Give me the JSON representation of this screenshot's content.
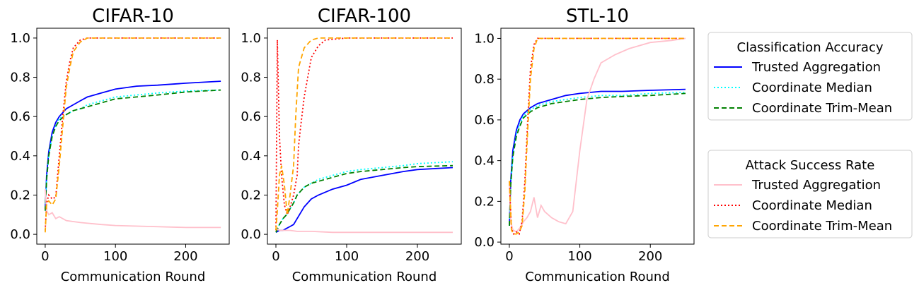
{
  "chart_data": [
    {
      "type": "line",
      "title": "CIFAR-10",
      "xlabel": "Communication Round",
      "ylabel": "",
      "xlim": [
        -12,
        262
      ],
      "ylim": [
        -0.05,
        1.05
      ],
      "xticks": [
        0,
        100,
        200
      ],
      "xtick_labels": [
        "0",
        "100",
        "200"
      ],
      "yticks": [
        0.0,
        0.2,
        0.4,
        0.6,
        0.8,
        1.0
      ],
      "ytick_labels": [
        "0.0",
        "0.2",
        "0.4",
        "0.6",
        "0.8",
        "1.0"
      ],
      "series": [
        {
          "name": "Trusted Aggregation",
          "metric": "Classification Accuracy",
          "color": "#0000ff",
          "dash": "solid",
          "x": [
            0,
            2,
            5,
            10,
            15,
            20,
            30,
            40,
            50,
            60,
            80,
            100,
            130,
            160,
            200,
            250
          ],
          "y": [
            0.13,
            0.3,
            0.42,
            0.52,
            0.57,
            0.6,
            0.64,
            0.66,
            0.68,
            0.7,
            0.72,
            0.74,
            0.755,
            0.76,
            0.77,
            0.78
          ]
        },
        {
          "name": "Coordinate Median",
          "metric": "Classification Accuracy",
          "color": "#00ffff",
          "dash": "dotted",
          "x": [
            0,
            2,
            5,
            10,
            15,
            20,
            30,
            40,
            50,
            60,
            80,
            100,
            130,
            160,
            200,
            250
          ],
          "y": [
            0.12,
            0.28,
            0.4,
            0.5,
            0.55,
            0.59,
            0.61,
            0.63,
            0.64,
            0.66,
            0.68,
            0.7,
            0.71,
            0.72,
            0.73,
            0.735
          ]
        },
        {
          "name": "Coordinate Trim-Mean",
          "metric": "Classification Accuracy",
          "color": "#008000",
          "dash": "dashed",
          "x": [
            0,
            2,
            5,
            10,
            15,
            20,
            30,
            40,
            50,
            60,
            80,
            100,
            130,
            160,
            200,
            250
          ],
          "y": [
            0.12,
            0.28,
            0.4,
            0.5,
            0.55,
            0.58,
            0.61,
            0.63,
            0.64,
            0.65,
            0.67,
            0.69,
            0.7,
            0.71,
            0.725,
            0.735
          ]
        },
        {
          "name": "Trusted Aggregation",
          "metric": "Attack Success Rate",
          "color": "#ffc0cb",
          "dash": "solid",
          "x": [
            0,
            2,
            5,
            10,
            15,
            20,
            30,
            50,
            80,
            100,
            150,
            200,
            250
          ],
          "y": [
            0.23,
            0.12,
            0.1,
            0.11,
            0.08,
            0.09,
            0.07,
            0.06,
            0.05,
            0.045,
            0.04,
            0.035,
            0.035
          ]
        },
        {
          "name": "Coordinate Median",
          "metric": "Attack Success Rate",
          "color": "#ff0000",
          "dash": "dotted",
          "x": [
            0,
            2,
            5,
            10,
            15,
            20,
            25,
            30,
            35,
            40,
            50,
            60,
            100,
            150,
            250
          ],
          "y": [
            0.02,
            0.16,
            0.2,
            0.18,
            0.19,
            0.4,
            0.6,
            0.78,
            0.88,
            0.95,
            0.99,
            1.0,
            1.0,
            1.0,
            1.0
          ]
        },
        {
          "name": "Coordinate Trim-Mean",
          "metric": "Attack Success Rate",
          "color": "#ffa500",
          "dash": "dashed",
          "x": [
            0,
            2,
            5,
            10,
            15,
            20,
            25,
            30,
            35,
            40,
            50,
            60,
            100,
            150,
            250
          ],
          "y": [
            0.01,
            0.16,
            0.17,
            0.15,
            0.18,
            0.35,
            0.55,
            0.75,
            0.85,
            0.93,
            0.98,
            1.0,
            1.0,
            1.0,
            1.0
          ]
        }
      ]
    },
    {
      "type": "line",
      "title": "CIFAR-100",
      "xlabel": "Communication Round",
      "ylabel": "",
      "xlim": [
        -12,
        262
      ],
      "ylim": [
        -0.05,
        1.05
      ],
      "xticks": [
        0,
        100,
        200
      ],
      "xtick_labels": [
        "0",
        "100",
        "200"
      ],
      "yticks": [
        0.0,
        0.2,
        0.4,
        0.6,
        0.8,
        1.0
      ],
      "ytick_labels": [
        "0.0",
        "0.2",
        "0.4",
        "0.6",
        "0.8",
        "1.0"
      ],
      "series": [
        {
          "name": "Trusted Aggregation",
          "metric": "Classification Accuracy",
          "color": "#0000ff",
          "dash": "solid",
          "x": [
            0,
            5,
            10,
            15,
            20,
            25,
            30,
            40,
            50,
            60,
            80,
            100,
            120,
            150,
            180,
            200,
            250
          ],
          "y": [
            0.01,
            0.02,
            0.02,
            0.03,
            0.04,
            0.05,
            0.08,
            0.14,
            0.18,
            0.2,
            0.23,
            0.25,
            0.28,
            0.3,
            0.32,
            0.33,
            0.34
          ]
        },
        {
          "name": "Coordinate Median",
          "metric": "Classification Accuracy",
          "color": "#00ffff",
          "dash": "dotted",
          "x": [
            0,
            5,
            10,
            15,
            20,
            25,
            30,
            40,
            50,
            60,
            80,
            100,
            120,
            150,
            180,
            200,
            250
          ],
          "y": [
            0.01,
            0.05,
            0.08,
            0.1,
            0.13,
            0.16,
            0.2,
            0.24,
            0.26,
            0.28,
            0.3,
            0.32,
            0.33,
            0.34,
            0.35,
            0.36,
            0.37
          ]
        },
        {
          "name": "Coordinate Trim-Mean",
          "metric": "Classification Accuracy",
          "color": "#008000",
          "dash": "dashed",
          "x": [
            0,
            5,
            10,
            15,
            20,
            25,
            30,
            40,
            50,
            60,
            80,
            100,
            120,
            150,
            180,
            200,
            250
          ],
          "y": [
            0.01,
            0.05,
            0.08,
            0.1,
            0.13,
            0.16,
            0.2,
            0.24,
            0.26,
            0.27,
            0.29,
            0.31,
            0.32,
            0.33,
            0.34,
            0.345,
            0.35
          ]
        },
        {
          "name": "Trusted Aggregation",
          "metric": "Attack Success Rate",
          "color": "#ffc0cb",
          "dash": "solid",
          "x": [
            0,
            5,
            10,
            20,
            30,
            50,
            80,
            100,
            150,
            200,
            250
          ],
          "y": [
            0.03,
            0.02,
            0.02,
            0.02,
            0.015,
            0.015,
            0.01,
            0.01,
            0.01,
            0.01,
            0.01
          ]
        },
        {
          "name": "Coordinate Median",
          "metric": "Attack Success Rate",
          "color": "#ff0000",
          "dash": "dotted",
          "x": [
            0,
            2,
            5,
            8,
            12,
            16,
            20,
            25,
            30,
            32,
            35,
            40,
            45,
            50,
            60,
            70,
            100,
            150,
            250
          ],
          "y": [
            0.02,
            0.99,
            0.5,
            0.3,
            0.15,
            0.1,
            0.14,
            0.2,
            0.3,
            0.45,
            0.55,
            0.7,
            0.8,
            0.9,
            0.96,
            0.99,
            1.0,
            1.0,
            1.0
          ]
        },
        {
          "name": "Coordinate Trim-Mean",
          "metric": "Attack Success Rate",
          "color": "#ffa500",
          "dash": "dashed",
          "x": [
            0,
            2,
            5,
            8,
            12,
            16,
            20,
            25,
            28,
            32,
            36,
            40,
            45,
            50,
            60,
            80,
            100,
            150,
            250
          ],
          "y": [
            0.02,
            0.12,
            0.3,
            0.35,
            0.25,
            0.1,
            0.2,
            0.35,
            0.6,
            0.85,
            0.9,
            0.95,
            0.97,
            0.99,
            1.0,
            1.0,
            1.0,
            1.0,
            1.0
          ]
        }
      ]
    },
    {
      "type": "line",
      "title": "STL-10",
      "xlabel": "Communication Round",
      "ylabel": "",
      "xlim": [
        -12,
        262
      ],
      "ylim": [
        -0.01,
        1.05
      ],
      "xticks": [
        0,
        100,
        200
      ],
      "xtick_labels": [
        "0",
        "100",
        "200"
      ],
      "yticks": [
        0.0,
        0.2,
        0.4,
        0.6,
        0.8,
        1.0
      ],
      "ytick_labels": [
        "0.0",
        "0.2",
        "0.4",
        "0.6",
        "0.8",
        "1.0"
      ],
      "series": [
        {
          "name": "Trusted Aggregation",
          "metric": "Classification Accuracy",
          "color": "#0000ff",
          "dash": "solid",
          "x": [
            0,
            2,
            5,
            10,
            15,
            20,
            30,
            40,
            50,
            60,
            80,
            100,
            130,
            160,
            200,
            250
          ],
          "y": [
            0.08,
            0.3,
            0.45,
            0.55,
            0.6,
            0.63,
            0.66,
            0.68,
            0.69,
            0.7,
            0.72,
            0.73,
            0.74,
            0.74,
            0.745,
            0.75
          ]
        },
        {
          "name": "Coordinate Median",
          "metric": "Classification Accuracy",
          "color": "#00ffff",
          "dash": "dotted",
          "x": [
            0,
            2,
            5,
            10,
            15,
            20,
            30,
            40,
            50,
            60,
            80,
            100,
            130,
            160,
            200,
            250
          ],
          "y": [
            0.08,
            0.28,
            0.42,
            0.53,
            0.58,
            0.62,
            0.65,
            0.67,
            0.68,
            0.69,
            0.7,
            0.71,
            0.72,
            0.72,
            0.73,
            0.735
          ]
        },
        {
          "name": "Coordinate Trim-Mean",
          "metric": "Classification Accuracy",
          "color": "#008000",
          "dash": "dashed",
          "x": [
            0,
            2,
            5,
            10,
            15,
            20,
            30,
            40,
            50,
            60,
            80,
            100,
            130,
            160,
            200,
            250
          ],
          "y": [
            0.08,
            0.28,
            0.42,
            0.52,
            0.57,
            0.61,
            0.64,
            0.66,
            0.67,
            0.68,
            0.69,
            0.7,
            0.71,
            0.715,
            0.72,
            0.73
          ]
        },
        {
          "name": "Trusted Aggregation",
          "metric": "Attack Success Rate",
          "color": "#ffc0cb",
          "dash": "solid",
          "x": [
            0,
            2,
            5,
            10,
            15,
            20,
            25,
            30,
            35,
            40,
            45,
            50,
            60,
            70,
            80,
            90,
            100,
            110,
            120,
            130,
            150,
            170,
            200,
            230,
            250
          ],
          "y": [
            0.3,
            0.1,
            0.06,
            0.05,
            0.07,
            0.1,
            0.12,
            0.15,
            0.22,
            0.12,
            0.18,
            0.15,
            0.12,
            0.1,
            0.09,
            0.15,
            0.45,
            0.7,
            0.8,
            0.88,
            0.92,
            0.95,
            0.98,
            0.99,
            1.0
          ]
        },
        {
          "name": "Coordinate Median",
          "metric": "Attack Success Rate",
          "color": "#ff0000",
          "dash": "dotted",
          "x": [
            0,
            3,
            6,
            10,
            14,
            18,
            22,
            26,
            30,
            35,
            40,
            50,
            100,
            150,
            250
          ],
          "y": [
            0.3,
            0.07,
            0.04,
            0.05,
            0.04,
            0.1,
            0.3,
            0.6,
            0.85,
            0.97,
            1.0,
            1.0,
            1.0,
            1.0,
            1.0
          ]
        },
        {
          "name": "Coordinate Trim-Mean",
          "metric": "Attack Success Rate",
          "color": "#ffa500",
          "dash": "dashed",
          "x": [
            0,
            3,
            6,
            10,
            14,
            18,
            22,
            26,
            30,
            35,
            40,
            50,
            100,
            150,
            250
          ],
          "y": [
            0.3,
            0.06,
            0.04,
            0.04,
            0.05,
            0.08,
            0.25,
            0.55,
            0.8,
            0.95,
            1.0,
            1.0,
            1.0,
            1.0,
            1.0
          ]
        }
      ]
    }
  ],
  "legends": [
    {
      "title": "Classification Accuracy",
      "entries": [
        {
          "label": "Trusted Aggregation",
          "color": "#0000ff",
          "dash": "solid"
        },
        {
          "label": "Coordinate Median",
          "color": "#00ffff",
          "dash": "dotted"
        },
        {
          "label": "Coordinate Trim-Mean",
          "color": "#008000",
          "dash": "dashed"
        }
      ]
    },
    {
      "title": "Attack Success Rate",
      "entries": [
        {
          "label": "Trusted Aggregation",
          "color": "#ffc0cb",
          "dash": "solid"
        },
        {
          "label": "Coordinate Median",
          "color": "#ff0000",
          "dash": "dotted"
        },
        {
          "label": "Coordinate Trim-Mean",
          "color": "#ffa500",
          "dash": "dashed"
        }
      ]
    }
  ]
}
